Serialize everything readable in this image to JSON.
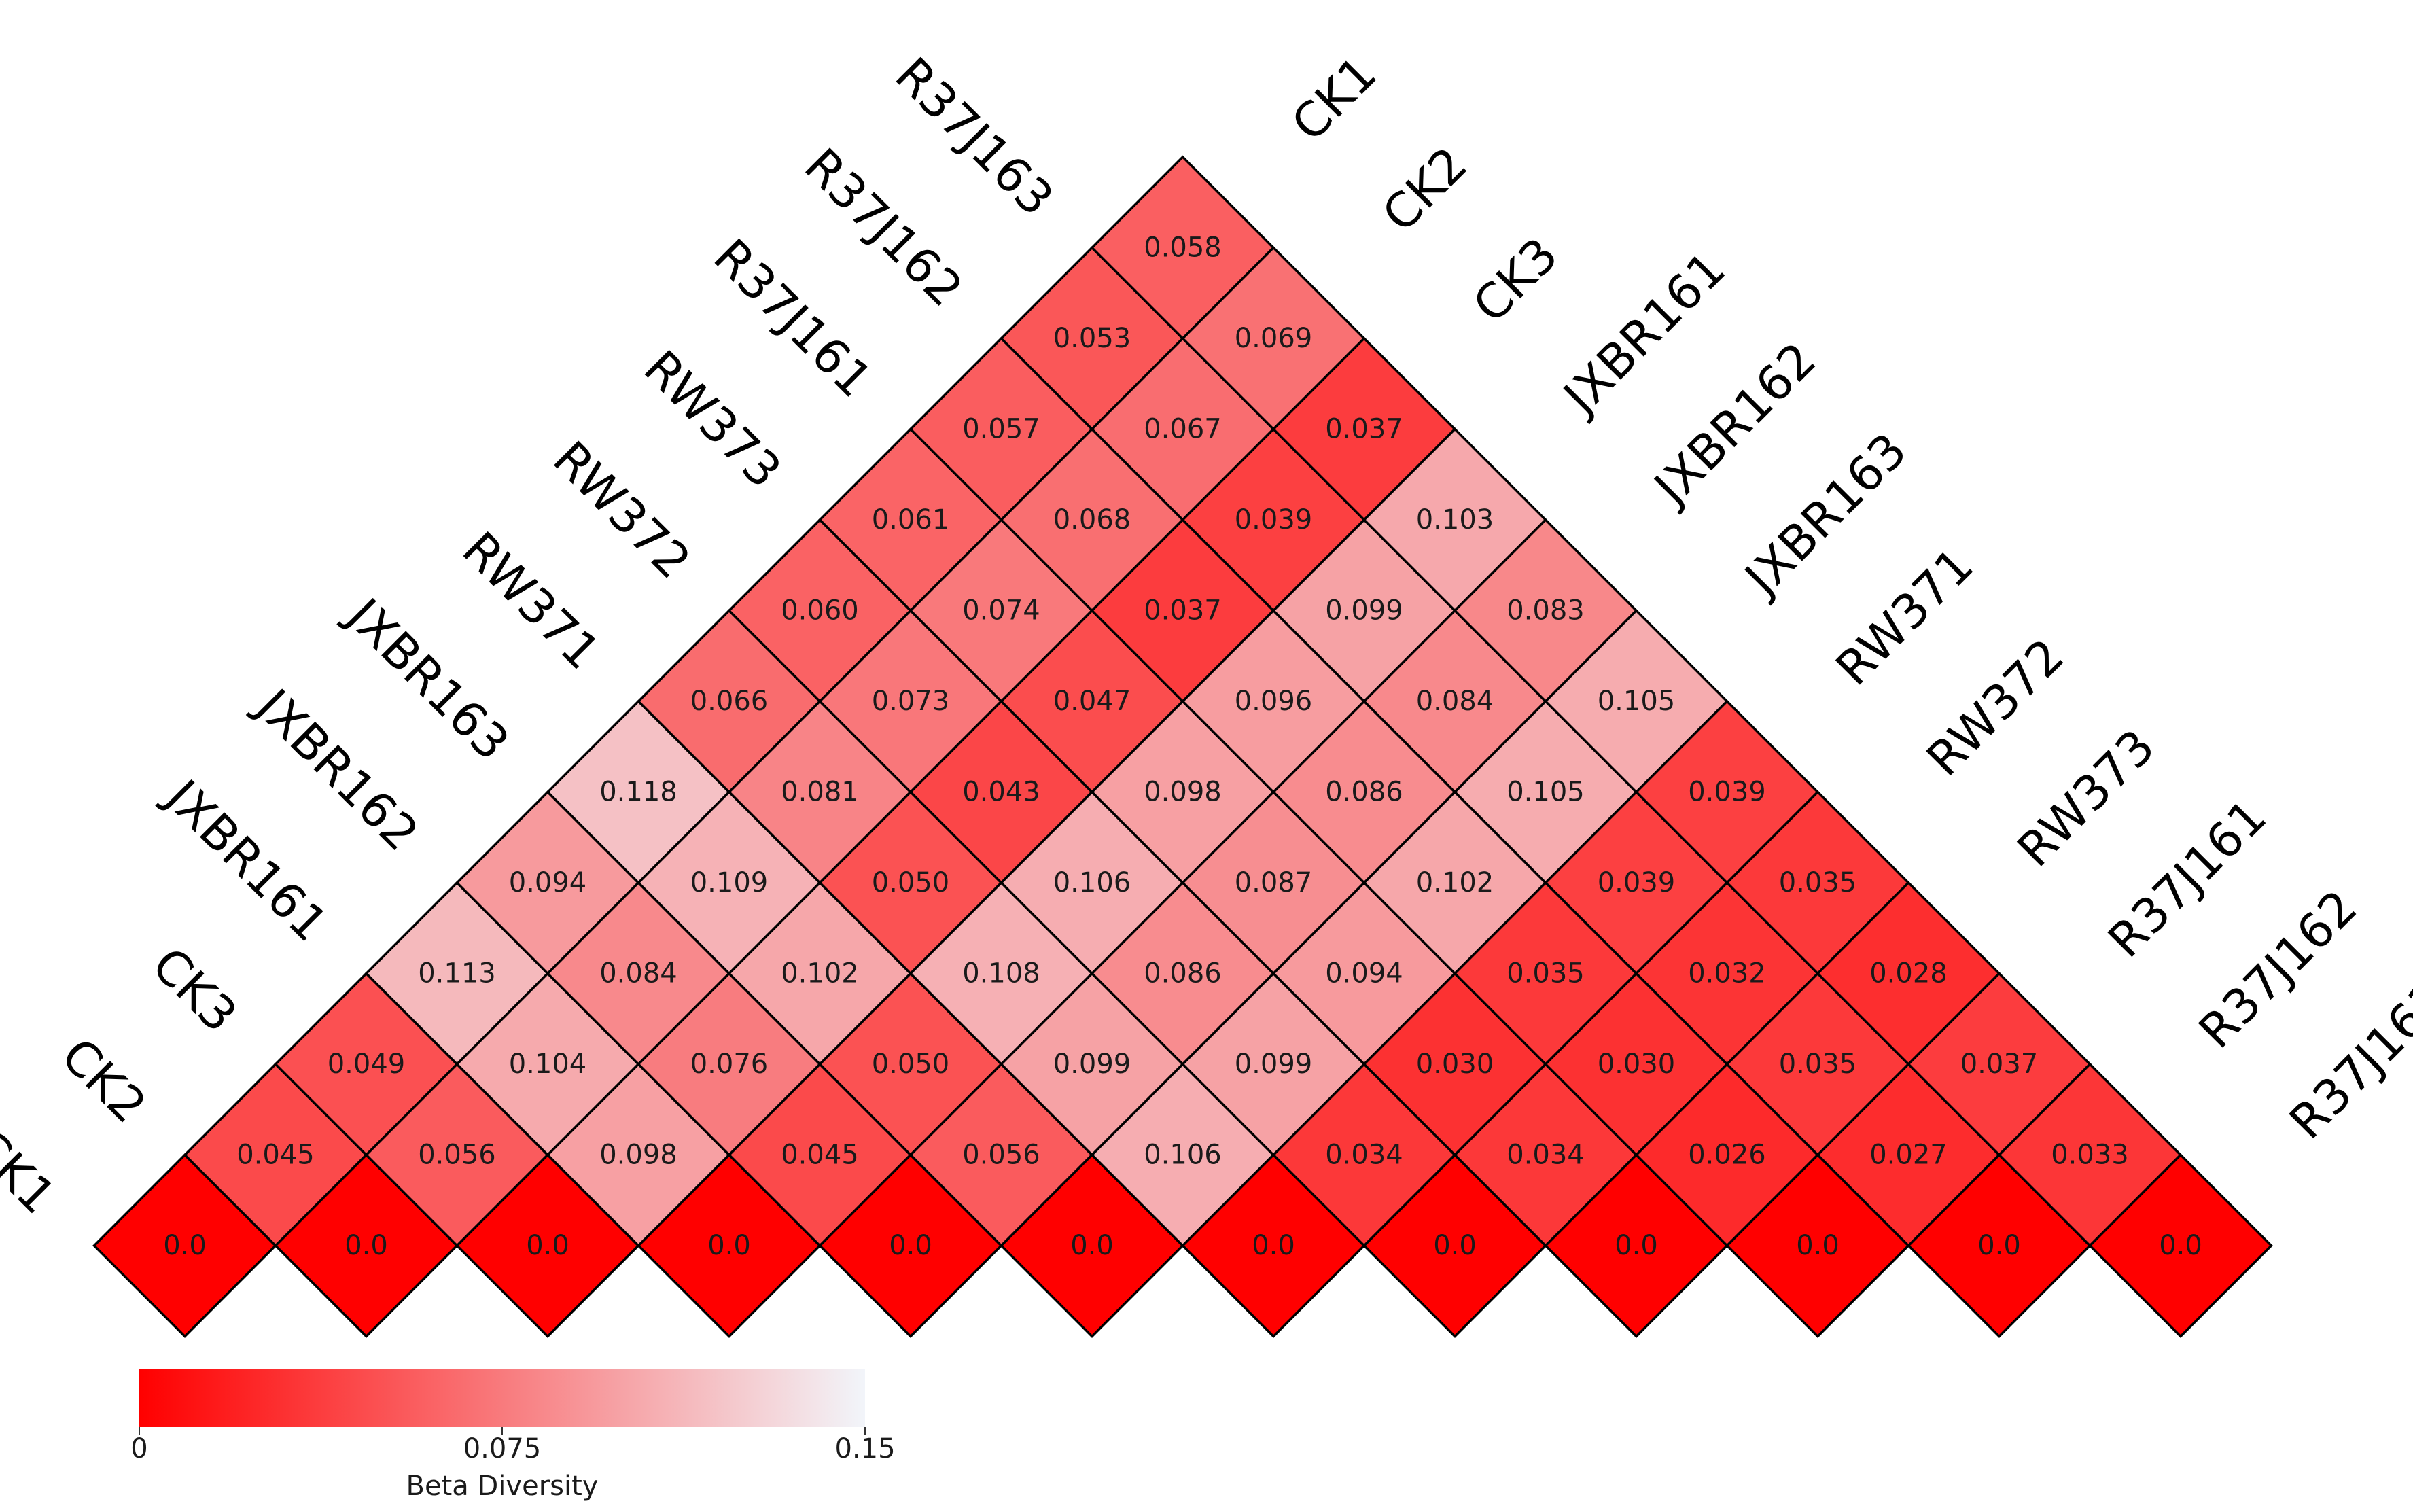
{
  "chart_data": {
    "type": "heatmap",
    "layout": "triangular pairwise matrix",
    "samples": [
      "CK1",
      "CK2",
      "CK3",
      "JXBR161",
      "JXBR162",
      "JXBR163",
      "RW371",
      "RW372",
      "RW373",
      "R37J161",
      "R37J162",
      "R37J163"
    ],
    "matrix": [
      [
        0.0,
        0.045,
        0.049,
        0.113,
        0.094,
        0.118,
        0.066,
        0.06,
        0.061,
        0.057,
        0.053,
        0.058
      ],
      [
        0.045,
        0.0,
        0.056,
        0.104,
        0.084,
        0.109,
        0.081,
        0.073,
        0.074,
        0.068,
        0.067,
        0.069
      ],
      [
        0.049,
        0.056,
        0.0,
        0.098,
        0.076,
        0.102,
        0.05,
        0.043,
        0.047,
        0.037,
        0.039,
        0.037
      ],
      [
        0.113,
        0.104,
        0.098,
        0.0,
        0.045,
        0.05,
        0.108,
        0.106,
        0.098,
        0.096,
        0.099,
        0.103
      ],
      [
        0.094,
        0.084,
        0.076,
        0.045,
        0.0,
        0.056,
        0.099,
        0.086,
        0.087,
        0.086,
        0.084,
        0.083
      ],
      [
        0.118,
        0.109,
        0.102,
        0.05,
        0.056,
        0.0,
        0.106,
        0.099,
        0.094,
        0.102,
        0.105,
        0.105
      ],
      [
        0.066,
        0.081,
        0.05,
        0.108,
        0.099,
        0.106,
        0.0,
        0.034,
        0.03,
        0.035,
        0.039,
        0.039
      ],
      [
        0.06,
        0.073,
        0.043,
        0.106,
        0.086,
        0.099,
        0.034,
        0.0,
        0.034,
        0.03,
        0.032,
        0.035
      ],
      [
        0.061,
        0.074,
        0.047,
        0.098,
        0.087,
        0.094,
        0.03,
        0.034,
        0.0,
        0.026,
        0.035,
        0.028
      ],
      [
        0.057,
        0.068,
        0.037,
        0.096,
        0.086,
        0.102,
        0.035,
        0.03,
        0.026,
        0.0,
        0.027,
        0.037
      ],
      [
        0.053,
        0.067,
        0.039,
        0.099,
        0.084,
        0.105,
        0.039,
        0.032,
        0.035,
        0.027,
        0.0,
        0.033
      ],
      [
        0.058,
        0.069,
        0.037,
        0.103,
        0.083,
        0.105,
        0.039,
        0.035,
        0.028,
        0.037,
        0.033,
        0.0
      ]
    ],
    "diagonal_labels": "0.0",
    "value_decimals": 3,
    "colorbar": {
      "title": "Beta Diversity",
      "min": 0,
      "max": 0.15,
      "ticks": [
        "0",
        "0.075",
        "0.15"
      ],
      "colors": [
        "#ff0000",
        "#f2f5fa"
      ]
    },
    "cell_border_color": "#000000"
  }
}
